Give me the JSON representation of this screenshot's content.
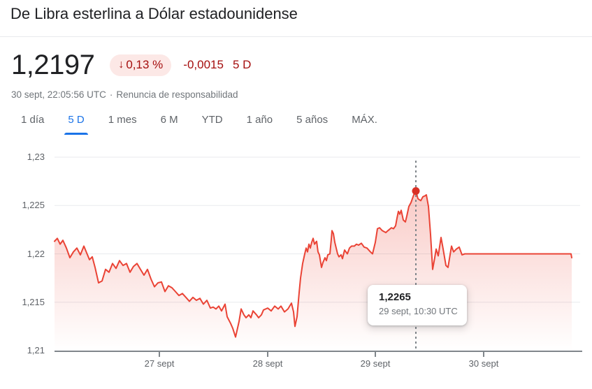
{
  "header": {
    "title": "De Libra esterlina a Dólar estadounidense"
  },
  "quote": {
    "price": "1,2197",
    "change_arrow": "↓",
    "change_percent": "0,13 %",
    "change_abs": "-0,0015",
    "change_period": "5 D",
    "timestamp": "30 sept, 22:05:56 UTC",
    "separator": "·",
    "disclaimer": "Renuncia de responsabilidad"
  },
  "tabs": {
    "active_index": 1,
    "items": [
      {
        "id": "1-dia",
        "label": "1 día"
      },
      {
        "id": "5-d",
        "label": "5 D"
      },
      {
        "id": "1-mes",
        "label": "1 mes"
      },
      {
        "id": "6-m",
        "label": "6 M"
      },
      {
        "id": "ytd",
        "label": "YTD"
      },
      {
        "id": "1-ano",
        "label": "1 año"
      },
      {
        "id": "5-anos",
        "label": "5 años"
      },
      {
        "id": "max",
        "label": "MÁX."
      }
    ]
  },
  "colors": {
    "accent_blue": "#1a73e8",
    "negative_red": "#a50e0e",
    "badge_background": "#fce8e6",
    "primary_text": "#202124",
    "secondary_text": "#70757a"
  },
  "chart_data": {
    "type": "line",
    "x_unit": "pixel offset within 5-day window",
    "x_range": [
      0,
      740
    ],
    "ylim": [
      1.21,
      1.23
    ],
    "grid": true,
    "yticks": [
      {
        "v": 1.23,
        "label": "1,23"
      },
      {
        "v": 1.225,
        "label": "1,225"
      },
      {
        "v": 1.22,
        "label": "1,22"
      },
      {
        "v": 1.215,
        "label": "1,215"
      },
      {
        "v": 1.21,
        "label": "1,21"
      }
    ],
    "xticks": [
      {
        "x": 150,
        "label": "27 sept"
      },
      {
        "x": 305,
        "label": "28 sept"
      },
      {
        "x": 459,
        "label": "29 sept"
      },
      {
        "x": 614,
        "label": "30 sept"
      }
    ],
    "marker": {
      "x": 517,
      "v": 1.2265
    },
    "tooltip": {
      "value": "1,2265",
      "time": "29 sept, 10:30 UTC"
    },
    "colors": {
      "line": "#ea4335",
      "marker": "#d93025",
      "grid": "#e8eaed",
      "axis": "#80868b",
      "crosshair": "#80868b"
    },
    "series": [
      {
        "name": "GBP/USD",
        "points": [
          [
            0,
            1.2213
          ],
          [
            4,
            1.2216
          ],
          [
            8,
            1.221
          ],
          [
            12,
            1.2214
          ],
          [
            17,
            1.2206
          ],
          [
            22,
            1.2196
          ],
          [
            27,
            1.2202
          ],
          [
            32,
            1.2206
          ],
          [
            37,
            1.2199
          ],
          [
            42,
            1.2208
          ],
          [
            46,
            1.2201
          ],
          [
            50,
            1.2194
          ],
          [
            54,
            1.2197
          ],
          [
            58,
            1.2186
          ],
          [
            63,
            1.217
          ],
          [
            68,
            1.2172
          ],
          [
            73,
            1.2184
          ],
          [
            78,
            1.2181
          ],
          [
            83,
            1.219
          ],
          [
            88,
            1.2185
          ],
          [
            93,
            1.2193
          ],
          [
            98,
            1.2188
          ],
          [
            103,
            1.219
          ],
          [
            108,
            1.2181
          ],
          [
            113,
            1.2187
          ],
          [
            118,
            1.219
          ],
          [
            123,
            1.2184
          ],
          [
            128,
            1.2178
          ],
          [
            133,
            1.2184
          ],
          [
            138,
            1.2174
          ],
          [
            143,
            1.2166
          ],
          [
            148,
            1.217
          ],
          [
            153,
            1.2171
          ],
          [
            158,
            1.2161
          ],
          [
            163,
            1.2167
          ],
          [
            168,
            1.2165
          ],
          [
            173,
            1.2161
          ],
          [
            178,
            1.2157
          ],
          [
            183,
            1.2159
          ],
          [
            188,
            1.2155
          ],
          [
            193,
            1.2151
          ],
          [
            198,
            1.2155
          ],
          [
            203,
            1.2152
          ],
          [
            208,
            1.2154
          ],
          [
            213,
            1.2148
          ],
          [
            218,
            1.2152
          ],
          [
            223,
            1.2144
          ],
          [
            227,
            1.2145
          ],
          [
            231,
            1.2143
          ],
          [
            235,
            1.2146
          ],
          [
            239,
            1.2141
          ],
          [
            244,
            1.2148
          ],
          [
            247,
            1.2135
          ],
          [
            252,
            1.2128
          ],
          [
            255,
            1.2123
          ],
          [
            259,
            1.2114
          ],
          [
            264,
            1.213
          ],
          [
            267,
            1.2143
          ],
          [
            271,
            1.2137
          ],
          [
            274,
            1.2134
          ],
          [
            278,
            1.2137
          ],
          [
            281,
            1.2134
          ],
          [
            284,
            1.2141
          ],
          [
            289,
            1.2137
          ],
          [
            292,
            1.2134
          ],
          [
            296,
            1.2137
          ],
          [
            299,
            1.2142
          ],
          [
            305,
            1.2144
          ],
          [
            310,
            1.2141
          ],
          [
            315,
            1.2146
          ],
          [
            320,
            1.2143
          ],
          [
            324,
            1.2146
          ],
          [
            329,
            1.214
          ],
          [
            334,
            1.2143
          ],
          [
            339,
            1.2149
          ],
          [
            342,
            1.214
          ],
          [
            344,
            1.2125
          ],
          [
            347,
            1.2135
          ],
          [
            350,
            1.216
          ],
          [
            352,
            1.2175
          ],
          [
            355,
            1.219
          ],
          [
            358,
            1.22
          ],
          [
            360,
            1.2206
          ],
          [
            362,
            1.2202
          ],
          [
            364,
            1.221
          ],
          [
            366,
            1.2206
          ],
          [
            368,
            1.2212
          ],
          [
            370,
            1.2216
          ],
          [
            372,
            1.221
          ],
          [
            375,
            1.2213
          ],
          [
            377,
            1.2202
          ],
          [
            379,
            1.2199
          ],
          [
            382,
            1.2186
          ],
          [
            384,
            1.2191
          ],
          [
            387,
            1.2196
          ],
          [
            389,
            1.2193
          ],
          [
            391,
            1.2199
          ],
          [
            394,
            1.22
          ],
          [
            396,
            1.2215
          ],
          [
            397,
            1.2224
          ],
          [
            399,
            1.2221
          ],
          [
            401,
            1.2212
          ],
          [
            403,
            1.2206
          ],
          [
            405,
            1.22
          ],
          [
            407,
            1.2197
          ],
          [
            410,
            1.2199
          ],
          [
            412,
            1.2195
          ],
          [
            415,
            1.2204
          ],
          [
            419,
            1.22
          ],
          [
            422,
            1.2206
          ],
          [
            425,
            1.2208
          ],
          [
            429,
            1.2208
          ],
          [
            432,
            1.221
          ],
          [
            435,
            1.2209
          ],
          [
            439,
            1.2211
          ],
          [
            443,
            1.2207
          ],
          [
            447,
            1.2206
          ],
          [
            452,
            1.2202
          ],
          [
            455,
            1.22
          ],
          [
            459,
            1.2212
          ],
          [
            462,
            1.2226
          ],
          [
            465,
            1.2227
          ],
          [
            469,
            1.2224
          ],
          [
            474,
            1.2222
          ],
          [
            477,
            1.2224
          ],
          [
            482,
            1.2227
          ],
          [
            485,
            1.2226
          ],
          [
            488,
            1.2229
          ],
          [
            490,
            1.2237
          ],
          [
            492,
            1.2244
          ],
          [
            494,
            1.2241
          ],
          [
            496,
            1.2245
          ],
          [
            499,
            1.2235
          ],
          [
            502,
            1.2233
          ],
          [
            504,
            1.2239
          ],
          [
            507,
            1.2249
          ],
          [
            510,
            1.2253
          ],
          [
            514,
            1.2261
          ],
          [
            517,
            1.2265
          ],
          [
            520,
            1.2257
          ],
          [
            524,
            1.2255
          ],
          [
            527,
            1.2259
          ],
          [
            530,
            1.226
          ],
          [
            532,
            1.2261
          ],
          [
            535,
            1.2249
          ],
          [
            538,
            1.222
          ],
          [
            541,
            1.2184
          ],
          [
            544,
            1.2196
          ],
          [
            546,
            1.2205
          ],
          [
            549,
            1.2198
          ],
          [
            553,
            1.2217
          ],
          [
            556,
            1.2205
          ],
          [
            560,
            1.2188
          ],
          [
            563,
            1.2186
          ],
          [
            568,
            1.2208
          ],
          [
            571,
            1.2202
          ],
          [
            575,
            1.2205
          ],
          [
            579,
            1.2207
          ],
          [
            583,
            1.2199
          ],
          [
            587,
            1.22
          ],
          [
            739,
            1.22
          ],
          [
            740,
            1.2196
          ]
        ]
      }
    ]
  }
}
